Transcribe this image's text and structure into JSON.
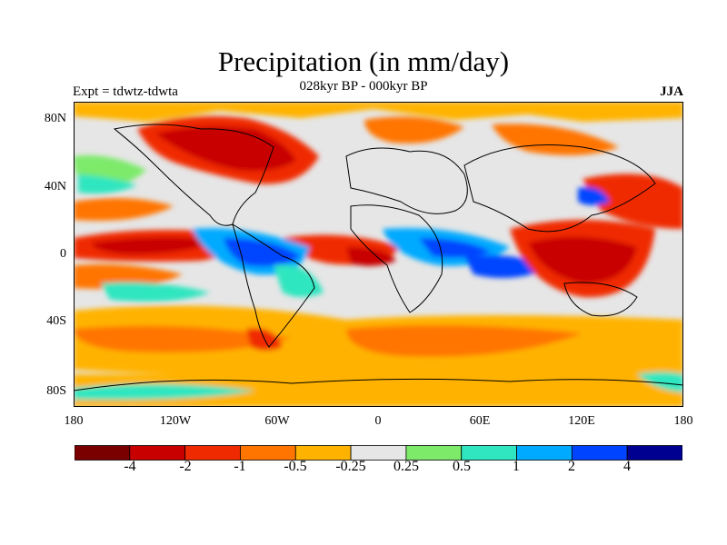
{
  "title": "Precipitation (in mm/day)",
  "subtitle": "028kyr BP - 000kyr BP",
  "left_label": "Expt = tdwtz-tdwta",
  "right_label": "JJA",
  "y_ticks": [
    "80N",
    "40N",
    "0",
    "40S",
    "80S"
  ],
  "x_ticks": [
    "180",
    "120W",
    "60W",
    "0",
    "60E",
    "120E",
    "180"
  ],
  "colorbar": {
    "colors": [
      "#7a0000",
      "#c80000",
      "#f02a00",
      "#ff7500",
      "#ffb300",
      "#e6e6e6",
      "#7dea6a",
      "#2fe6c0",
      "#00aaff",
      "#0044ff",
      "#000090"
    ],
    "labels": [
      "-4",
      "-2",
      "-1",
      "-0.5",
      "-0.25",
      "0.25",
      "0.5",
      "1",
      "2",
      "4"
    ]
  },
  "palette": {
    "ocean_bg": "#e6e6e6",
    "dry_strong": "#c80000",
    "dry_moderate": "#f02a00",
    "dry_weak": "#ff7500",
    "dry_slight": "#ffb300",
    "wet_slight": "#7dea6a",
    "wet_weak": "#2fe6c0",
    "wet_moderate": "#00aaff",
    "wet_strong": "#0044ff"
  }
}
